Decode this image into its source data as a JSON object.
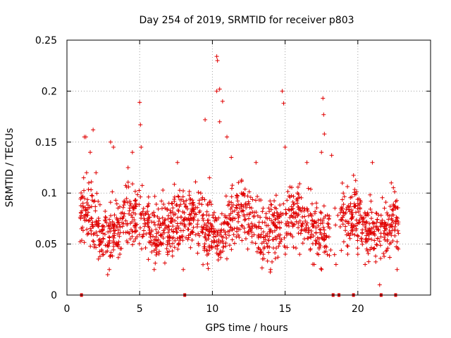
{
  "chart_data": {
    "type": "scatter",
    "title": "Day 254 of 2019, SRMTID for receiver p803",
    "xlabel": "GPS time / hours",
    "ylabel": "SRMTID / TECUs",
    "xlim": [
      0,
      25
    ],
    "ylim": [
      0,
      0.25
    ],
    "xticks": [
      0,
      5,
      10,
      15,
      20
    ],
    "xtick_labels": [
      "0",
      "5",
      "10",
      "15",
      "20"
    ],
    "yticks": [
      0,
      0.05,
      0.1,
      0.15,
      0.2,
      0.25
    ],
    "ytick_labels": [
      "0",
      "0.05",
      "0.1",
      "0.15",
      "0.2",
      "0.25"
    ],
    "grid": true,
    "marker": "plus",
    "color": "#e00000",
    "series": [
      {
        "name": "SRMTID",
        "x_range": [
          0.9,
          22.8
        ],
        "typical_range": [
          0.03,
          0.11
        ],
        "points": [
          {
            "x": 1.0,
            "y": 0.065
          },
          {
            "x": 1.1,
            "y": 0.09
          },
          {
            "x": 1.15,
            "y": 0.115
          },
          {
            "x": 1.2,
            "y": 0.155
          },
          {
            "x": 1.3,
            "y": 0.155
          },
          {
            "x": 1.35,
            "y": 0.12
          },
          {
            "x": 1.5,
            "y": 0.11
          },
          {
            "x": 1.6,
            "y": 0.14
          },
          {
            "x": 1.8,
            "y": 0.162
          },
          {
            "x": 2.0,
            "y": 0.12
          },
          {
            "x": 2.2,
            "y": 0.07
          },
          {
            "x": 2.5,
            "y": 0.04
          },
          {
            "x": 2.8,
            "y": 0.02
          },
          {
            "x": 3.0,
            "y": 0.15
          },
          {
            "x": 3.2,
            "y": 0.145
          },
          {
            "x": 3.5,
            "y": 0.06
          },
          {
            "x": 4.2,
            "y": 0.125
          },
          {
            "x": 4.5,
            "y": 0.14
          },
          {
            "x": 5.0,
            "y": 0.189
          },
          {
            "x": 5.05,
            "y": 0.167
          },
          {
            "x": 5.1,
            "y": 0.145
          },
          {
            "x": 5.6,
            "y": 0.035
          },
          {
            "x": 6.0,
            "y": 0.025
          },
          {
            "x": 6.5,
            "y": 0.05
          },
          {
            "x": 7.2,
            "y": 0.09
          },
          {
            "x": 7.6,
            "y": 0.13
          },
          {
            "x": 8.0,
            "y": 0.025
          },
          {
            "x": 8.5,
            "y": 0.06
          },
          {
            "x": 9.2,
            "y": 0.1
          },
          {
            "x": 9.5,
            "y": 0.172
          },
          {
            "x": 9.8,
            "y": 0.115
          },
          {
            "x": 10.3,
            "y": 0.234
          },
          {
            "x": 10.35,
            "y": 0.23
          },
          {
            "x": 10.3,
            "y": 0.2
          },
          {
            "x": 10.5,
            "y": 0.202
          },
          {
            "x": 10.7,
            "y": 0.19
          },
          {
            "x": 10.5,
            "y": 0.17
          },
          {
            "x": 11.0,
            "y": 0.155
          },
          {
            "x": 11.3,
            "y": 0.135
          },
          {
            "x": 12.0,
            "y": 0.1
          },
          {
            "x": 12.5,
            "y": 0.06
          },
          {
            "x": 13.0,
            "y": 0.13
          },
          {
            "x": 13.5,
            "y": 0.04
          },
          {
            "x": 14.0,
            "y": 0.025
          },
          {
            "x": 14.8,
            "y": 0.2
          },
          {
            "x": 14.9,
            "y": 0.188
          },
          {
            "x": 15.0,
            "y": 0.145
          },
          {
            "x": 15.5,
            "y": 0.07
          },
          {
            "x": 16.0,
            "y": 0.04
          },
          {
            "x": 16.5,
            "y": 0.13
          },
          {
            "x": 17.0,
            "y": 0.03
          },
          {
            "x": 17.6,
            "y": 0.193
          },
          {
            "x": 17.65,
            "y": 0.177
          },
          {
            "x": 17.7,
            "y": 0.158
          },
          {
            "x": 17.5,
            "y": 0.14
          },
          {
            "x": 18.2,
            "y": 0.137
          },
          {
            "x": 18.5,
            "y": 0.03
          },
          {
            "x": 19.0,
            "y": 0.1
          },
          {
            "x": 19.5,
            "y": 0.06
          },
          {
            "x": 20.0,
            "y": 0.04
          },
          {
            "x": 20.5,
            "y": 0.03
          },
          {
            "x": 21.0,
            "y": 0.13
          },
          {
            "x": 21.3,
            "y": 0.08
          },
          {
            "x": 21.5,
            "y": 0.01
          },
          {
            "x": 22.0,
            "y": 0.06
          },
          {
            "x": 22.3,
            "y": 0.11
          },
          {
            "x": 22.6,
            "y": 0.07
          },
          {
            "x": 22.7,
            "y": 0.025
          }
        ]
      }
    ],
    "baseline_markers_x": [
      1.0,
      8.1,
      18.3,
      18.7,
      19.7,
      21.6,
      22.6
    ]
  }
}
